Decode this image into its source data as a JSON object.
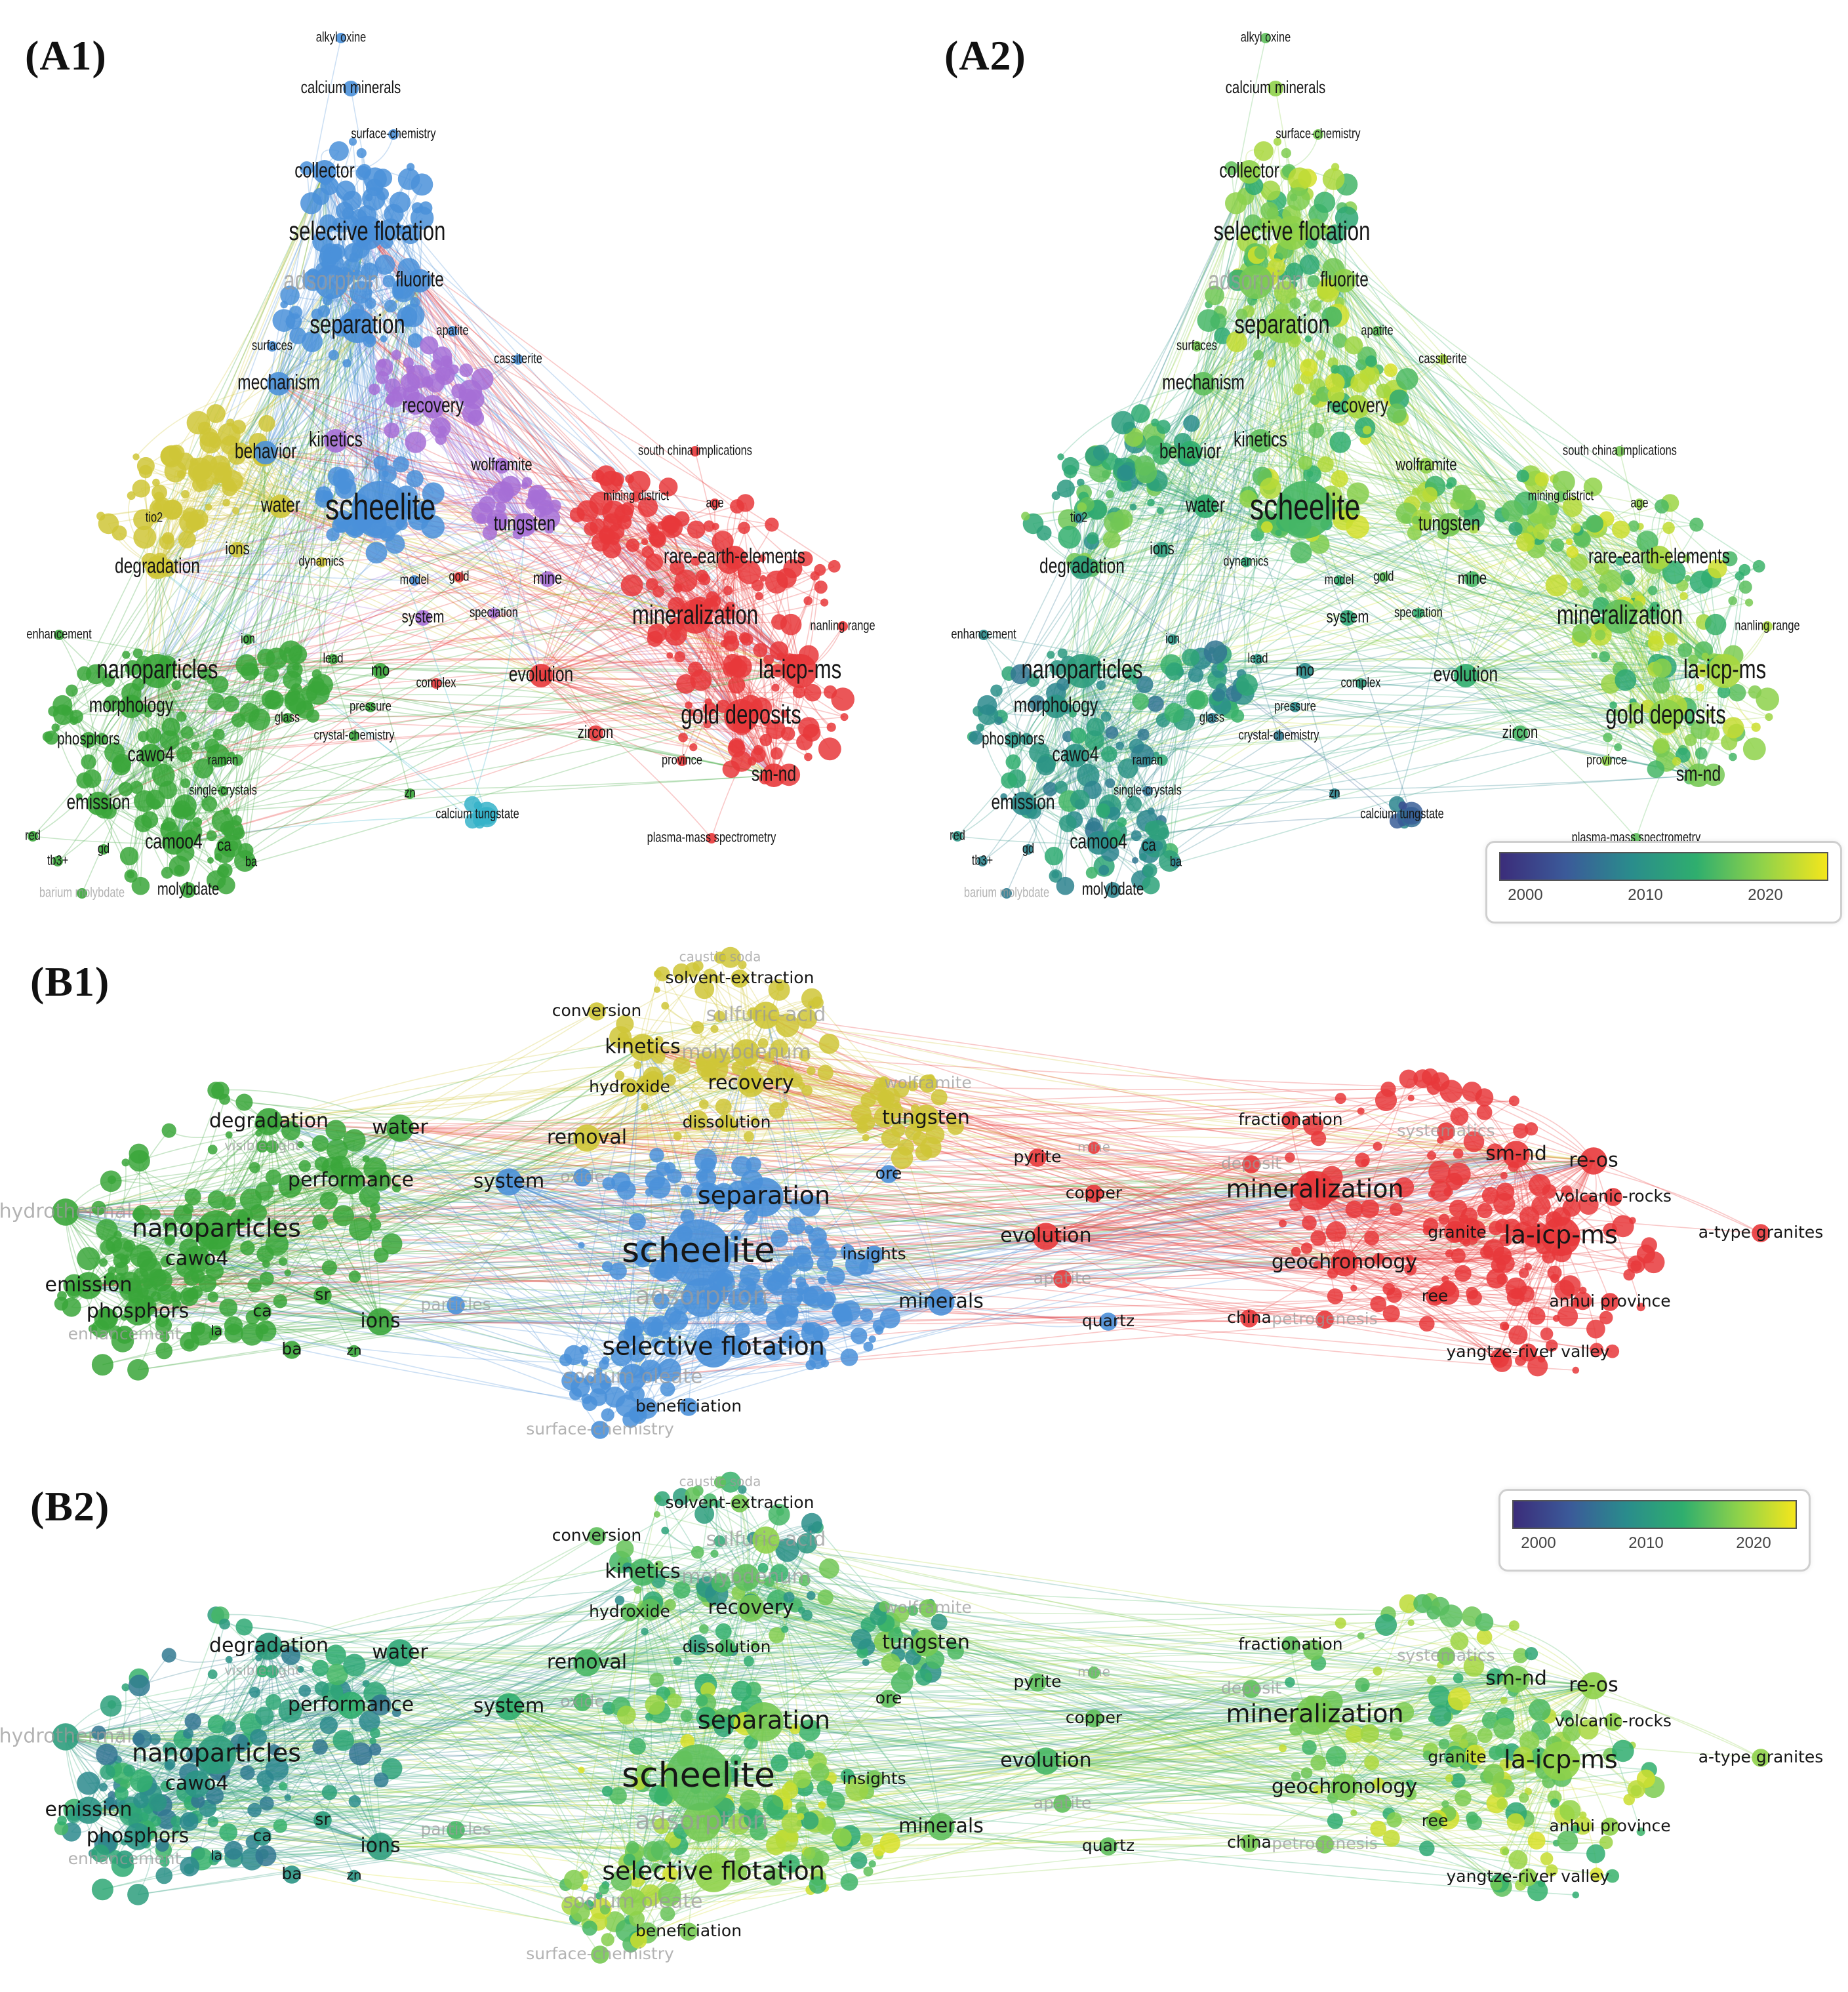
{
  "panels": [
    {
      "id": "A1",
      "label": "(A1)",
      "mode": "cluster",
      "narrow": true
    },
    {
      "id": "A2",
      "label": "(A2)",
      "mode": "year",
      "narrow": true,
      "colorbar": {
        "ticks": [
          "2000",
          "2010",
          "2020"
        ]
      }
    },
    {
      "id": "B1",
      "label": "(B1)",
      "mode": "cluster",
      "narrow": false
    },
    {
      "id": "B2",
      "label": "(B2)",
      "mode": "year",
      "narrow": false,
      "colorbar": {
        "ticks": [
          "2000",
          "2010",
          "2020"
        ]
      }
    }
  ],
  "colors": {
    "red": "#e8383b",
    "blue": "#4a90d9",
    "green": "#3aa63a",
    "yellow": "#cfc637",
    "purple": "#a66fd6",
    "cyan": "#36b3c9"
  },
  "network_A": {
    "terms": [
      {
        "text": "alkyl oxine",
        "cluster": "blue",
        "year": 2016,
        "size": 1
      },
      {
        "text": "calcium minerals",
        "cluster": "blue",
        "year": 2018,
        "size": 2
      },
      {
        "text": "surface-chemistry",
        "cluster": "blue",
        "year": 2017,
        "size": 1
      },
      {
        "text": "collector",
        "cluster": "blue",
        "year": 2018,
        "size": 3
      },
      {
        "text": "selective flotation",
        "cluster": "blue",
        "year": 2018,
        "size": 4
      },
      {
        "text": "adsorption",
        "cluster": "blue",
        "year": 2017,
        "size": 4,
        "faint": true
      },
      {
        "text": "fluorite",
        "cluster": "blue",
        "year": 2018,
        "size": 3
      },
      {
        "text": "separation",
        "cluster": "blue",
        "year": 2018,
        "size": 4
      },
      {
        "text": "apatite",
        "cluster": "blue",
        "year": 2016,
        "size": 1
      },
      {
        "text": "surfaces",
        "cluster": "blue",
        "year": 2017,
        "size": 1
      },
      {
        "text": "cassiterite",
        "cluster": "blue",
        "year": 2019,
        "size": 1
      },
      {
        "text": "mechanism",
        "cluster": "blue",
        "year": 2016,
        "size": 3
      },
      {
        "text": "recovery",
        "cluster": "purple",
        "year": 2019,
        "size": 3
      },
      {
        "text": "behavior",
        "cluster": "blue",
        "year": 2014,
        "size": 3
      },
      {
        "text": "kinetics",
        "cluster": "purple",
        "year": 2016,
        "size": 3
      },
      {
        "text": "wolframite",
        "cluster": "purple",
        "year": 2018,
        "size": 2
      },
      {
        "text": "south china implications",
        "cluster": "red",
        "year": 2017,
        "size": 1
      },
      {
        "text": "water",
        "cluster": "yellow",
        "year": 2014,
        "size": 3
      },
      {
        "text": "scheelite",
        "cluster": "blue",
        "year": 2015,
        "size": 5
      },
      {
        "text": "tungsten",
        "cluster": "purple",
        "year": 2017,
        "size": 3
      },
      {
        "text": "mining district",
        "cluster": "red",
        "year": 2016,
        "size": 1
      },
      {
        "text": "age",
        "cluster": "red",
        "year": 2018,
        "size": 1
      },
      {
        "text": "tio2",
        "cluster": "yellow",
        "year": 2009,
        "size": 1
      },
      {
        "text": "degradation",
        "cluster": "yellow",
        "year": 2012,
        "size": 3
      },
      {
        "text": "ions",
        "cluster": "yellow",
        "year": 2012,
        "size": 2
      },
      {
        "text": "dynamics",
        "cluster": "yellow",
        "year": 2013,
        "size": 1
      },
      {
        "text": "rare-earth-elements",
        "cluster": "red",
        "year": 2019,
        "size": 3
      },
      {
        "text": "mine",
        "cluster": "purple",
        "year": 2015,
        "size": 2
      },
      {
        "text": "model",
        "cluster": "blue",
        "year": 2014,
        "size": 1
      },
      {
        "text": "gold",
        "cluster": "red",
        "year": 2016,
        "size": 1
      },
      {
        "text": "system",
        "cluster": "purple",
        "year": 2013,
        "size": 2
      },
      {
        "text": "speciation",
        "cluster": "purple",
        "year": 2014,
        "size": 1
      },
      {
        "text": "mineralization",
        "cluster": "red",
        "year": 2016,
        "size": 4
      },
      {
        "text": "nanling range",
        "cluster": "red",
        "year": 2019,
        "size": 1
      },
      {
        "text": "enhancement",
        "cluster": "green",
        "year": 2010,
        "size": 1
      },
      {
        "text": "ion",
        "cluster": "green",
        "year": 2011,
        "size": 1
      },
      {
        "text": "nanoparticles",
        "cluster": "green",
        "year": 2012,
        "size": 4
      },
      {
        "text": "lead",
        "cluster": "green",
        "year": 2011,
        "size": 1
      },
      {
        "text": "mo",
        "cluster": "green",
        "year": 2010,
        "size": 2
      },
      {
        "text": "complex",
        "cluster": "red",
        "year": 2012,
        "size": 1
      },
      {
        "text": "evolution",
        "cluster": "red",
        "year": 2014,
        "size": 3
      },
      {
        "text": "la-icp-ms",
        "cluster": "red",
        "year": 2019,
        "size": 4
      },
      {
        "text": "morphology",
        "cluster": "green",
        "year": 2011,
        "size": 3
      },
      {
        "text": "glass",
        "cluster": "green",
        "year": 2008,
        "size": 1
      },
      {
        "text": "pressure",
        "cluster": "green",
        "year": 2010,
        "size": 1
      },
      {
        "text": "crystal-chemistry",
        "cluster": "green",
        "year": 2008,
        "size": 1
      },
      {
        "text": "phosphors",
        "cluster": "green",
        "year": 2011,
        "size": 2
      },
      {
        "text": "cawo4",
        "cluster": "green",
        "year": 2011,
        "size": 3
      },
      {
        "text": "raman",
        "cluster": "green",
        "year": 2009,
        "size": 1
      },
      {
        "text": "zircon",
        "cluster": "red",
        "year": 2015,
        "size": 2
      },
      {
        "text": "gold deposits",
        "cluster": "red",
        "year": 2018,
        "size": 4
      },
      {
        "text": "province",
        "cluster": "red",
        "year": 2018,
        "size": 1
      },
      {
        "text": "sm-nd",
        "cluster": "red",
        "year": 2017,
        "size": 3
      },
      {
        "text": "emission",
        "cluster": "green",
        "year": 2010,
        "size": 3
      },
      {
        "text": "single-crystals",
        "cluster": "green",
        "year": 2007,
        "size": 1
      },
      {
        "text": "zn",
        "cluster": "green",
        "year": 2009,
        "size": 1
      },
      {
        "text": "calcium tungstate",
        "cluster": "cyan",
        "year": 2006,
        "size": 1
      },
      {
        "text": "red",
        "cluster": "green",
        "year": 2011,
        "size": 1
      },
      {
        "text": "camoo4",
        "cluster": "green",
        "year": 2010,
        "size": 3
      },
      {
        "text": "ca",
        "cluster": "green",
        "year": 2010,
        "size": 2
      },
      {
        "text": "gd",
        "cluster": "green",
        "year": 2009,
        "size": 1
      },
      {
        "text": "tb3+",
        "cluster": "green",
        "year": 2009,
        "size": 1
      },
      {
        "text": "ba",
        "cluster": "green",
        "year": 2009,
        "size": 1
      },
      {
        "text": "barium molybdate",
        "cluster": "green",
        "year": 2008,
        "size": 1,
        "faint": true
      },
      {
        "text": "molybdate",
        "cluster": "green",
        "year": 2009,
        "size": 2
      },
      {
        "text": "plasma-mass spectrometry",
        "cluster": "red",
        "year": 2016,
        "size": 1
      }
    ]
  },
  "network_B": {
    "terms": [
      {
        "text": "caustic soda",
        "cluster": "yellow",
        "year": 2016,
        "size": 1,
        "faint": true
      },
      {
        "text": "solvent-extraction",
        "cluster": "yellow",
        "year": 2017,
        "size": 2
      },
      {
        "text": "conversion",
        "cluster": "yellow",
        "year": 2016,
        "size": 2
      },
      {
        "text": "sulfuric-acid",
        "cluster": "yellow",
        "year": 2018,
        "size": 3,
        "faint": true
      },
      {
        "text": "kinetics",
        "cluster": "yellow",
        "year": 2015,
        "size": 3
      },
      {
        "text": "molybdenum",
        "cluster": "yellow",
        "year": 2016,
        "size": 3,
        "faint": true
      },
      {
        "text": "hydroxide",
        "cluster": "yellow",
        "year": 2016,
        "size": 2
      },
      {
        "text": "recovery",
        "cluster": "yellow",
        "year": 2017,
        "size": 3
      },
      {
        "text": "degradation",
        "cluster": "green",
        "year": 2012,
        "size": 3
      },
      {
        "text": "water",
        "cluster": "green",
        "year": 2013,
        "size": 3
      },
      {
        "text": "removal",
        "cluster": "yellow",
        "year": 2015,
        "size": 3
      },
      {
        "text": "dissolution",
        "cluster": "yellow",
        "year": 2015,
        "size": 2
      },
      {
        "text": "tungsten",
        "cluster": "yellow",
        "year": 2017,
        "size": 3
      },
      {
        "text": "fractionation",
        "cluster": "red",
        "year": 2016,
        "size": 2
      },
      {
        "text": "visible-light",
        "cluster": "green",
        "year": 2014,
        "size": 1,
        "faint": true
      },
      {
        "text": "systematics",
        "cluster": "red",
        "year": 2017,
        "size": 2,
        "faint": true
      },
      {
        "text": "pyrite",
        "cluster": "red",
        "year": 2016,
        "size": 2
      },
      {
        "text": "mine",
        "cluster": "red",
        "year": 2016,
        "size": 1,
        "faint": true
      },
      {
        "text": "sm-nd",
        "cluster": "red",
        "year": 2017,
        "size": 3
      },
      {
        "text": "re-os",
        "cluster": "red",
        "year": 2018,
        "size": 3
      },
      {
        "text": "deposit",
        "cluster": "red",
        "year": 2016,
        "size": 2,
        "faint": true
      },
      {
        "text": "performance",
        "cluster": "green",
        "year": 2014,
        "size": 3
      },
      {
        "text": "system",
        "cluster": "blue",
        "year": 2014,
        "size": 3
      },
      {
        "text": "ore",
        "cluster": "blue",
        "year": 2016,
        "size": 2
      },
      {
        "text": "copper",
        "cluster": "red",
        "year": 2016,
        "size": 2
      },
      {
        "text": "mineralization",
        "cluster": "red",
        "year": 2017,
        "size": 4
      },
      {
        "text": "volcanic-rocks",
        "cluster": "red",
        "year": 2018,
        "size": 2
      },
      {
        "text": "separation",
        "cluster": "blue",
        "year": 2017,
        "size": 4
      },
      {
        "text": "hydrothermal",
        "cluster": "green",
        "year": 2012,
        "size": 3,
        "faint": true
      },
      {
        "text": "nanoparticles",
        "cluster": "green",
        "year": 2012,
        "size": 4
      },
      {
        "text": "evolution",
        "cluster": "red",
        "year": 2015,
        "size": 3
      },
      {
        "text": "granite",
        "cluster": "red",
        "year": 2017,
        "size": 2
      },
      {
        "text": "la-icp-ms",
        "cluster": "red",
        "year": 2018,
        "size": 4
      },
      {
        "text": "a-type granites",
        "cluster": "red",
        "year": 2018,
        "size": 2
      },
      {
        "text": "scheelite",
        "cluster": "blue",
        "year": 2016,
        "size": 5
      },
      {
        "text": "insights",
        "cluster": "blue",
        "year": 2017,
        "size": 2
      },
      {
        "text": "cawo4",
        "cluster": "green",
        "year": 2011,
        "size": 3
      },
      {
        "text": "geochronology",
        "cluster": "red",
        "year": 2017,
        "size": 3
      },
      {
        "text": "apatite",
        "cluster": "red",
        "year": 2016,
        "size": 2,
        "faint": true
      },
      {
        "text": "emission",
        "cluster": "green",
        "year": 2011,
        "size": 3
      },
      {
        "text": "sr",
        "cluster": "green",
        "year": 2012,
        "size": 2
      },
      {
        "text": "adsorption",
        "cluster": "blue",
        "year": 2017,
        "size": 4,
        "faint": true
      },
      {
        "text": "minerals",
        "cluster": "blue",
        "year": 2016,
        "size": 3
      },
      {
        "text": "ree",
        "cluster": "red",
        "year": 2017,
        "size": 2
      },
      {
        "text": "anhui province",
        "cluster": "red",
        "year": 2018,
        "size": 2
      },
      {
        "text": "phosphors",
        "cluster": "green",
        "year": 2011,
        "size": 3
      },
      {
        "text": "particles",
        "cluster": "blue",
        "year": 2015,
        "size": 2,
        "faint": true
      },
      {
        "text": "ca",
        "cluster": "green",
        "year": 2011,
        "size": 2
      },
      {
        "text": "ions",
        "cluster": "green",
        "year": 2012,
        "size": 3
      },
      {
        "text": "quartz",
        "cluster": "blue",
        "year": 2016,
        "size": 2
      },
      {
        "text": "china",
        "cluster": "red",
        "year": 2017,
        "size": 2
      },
      {
        "text": "petrogenesis",
        "cluster": "red",
        "year": 2017,
        "size": 2,
        "faint": true
      },
      {
        "text": "enhancement",
        "cluster": "green",
        "year": 2012,
        "size": 2,
        "faint": true
      },
      {
        "text": "la",
        "cluster": "green",
        "year": 2011,
        "size": 1
      },
      {
        "text": "selective flotation",
        "cluster": "blue",
        "year": 2018,
        "size": 4
      },
      {
        "text": "ba",
        "cluster": "green",
        "year": 2011,
        "size": 2
      },
      {
        "text": "zn",
        "cluster": "green",
        "year": 2011,
        "size": 1
      },
      {
        "text": "yangtze-river valley",
        "cluster": "red",
        "year": 2018,
        "size": 2
      },
      {
        "text": "sodium oleate",
        "cluster": "blue",
        "year": 2018,
        "size": 3,
        "faint": true
      },
      {
        "text": "beneficiation",
        "cluster": "blue",
        "year": 2017,
        "size": 2
      },
      {
        "text": "surface-chemistry",
        "cluster": "blue",
        "year": 2017,
        "size": 2,
        "faint": true
      },
      {
        "text": "oxide",
        "cluster": "blue",
        "year": 2015,
        "size": 2,
        "faint": true
      },
      {
        "text": "wolframite",
        "cluster": "yellow",
        "year": 2017,
        "size": 2,
        "faint": true
      }
    ]
  }
}
